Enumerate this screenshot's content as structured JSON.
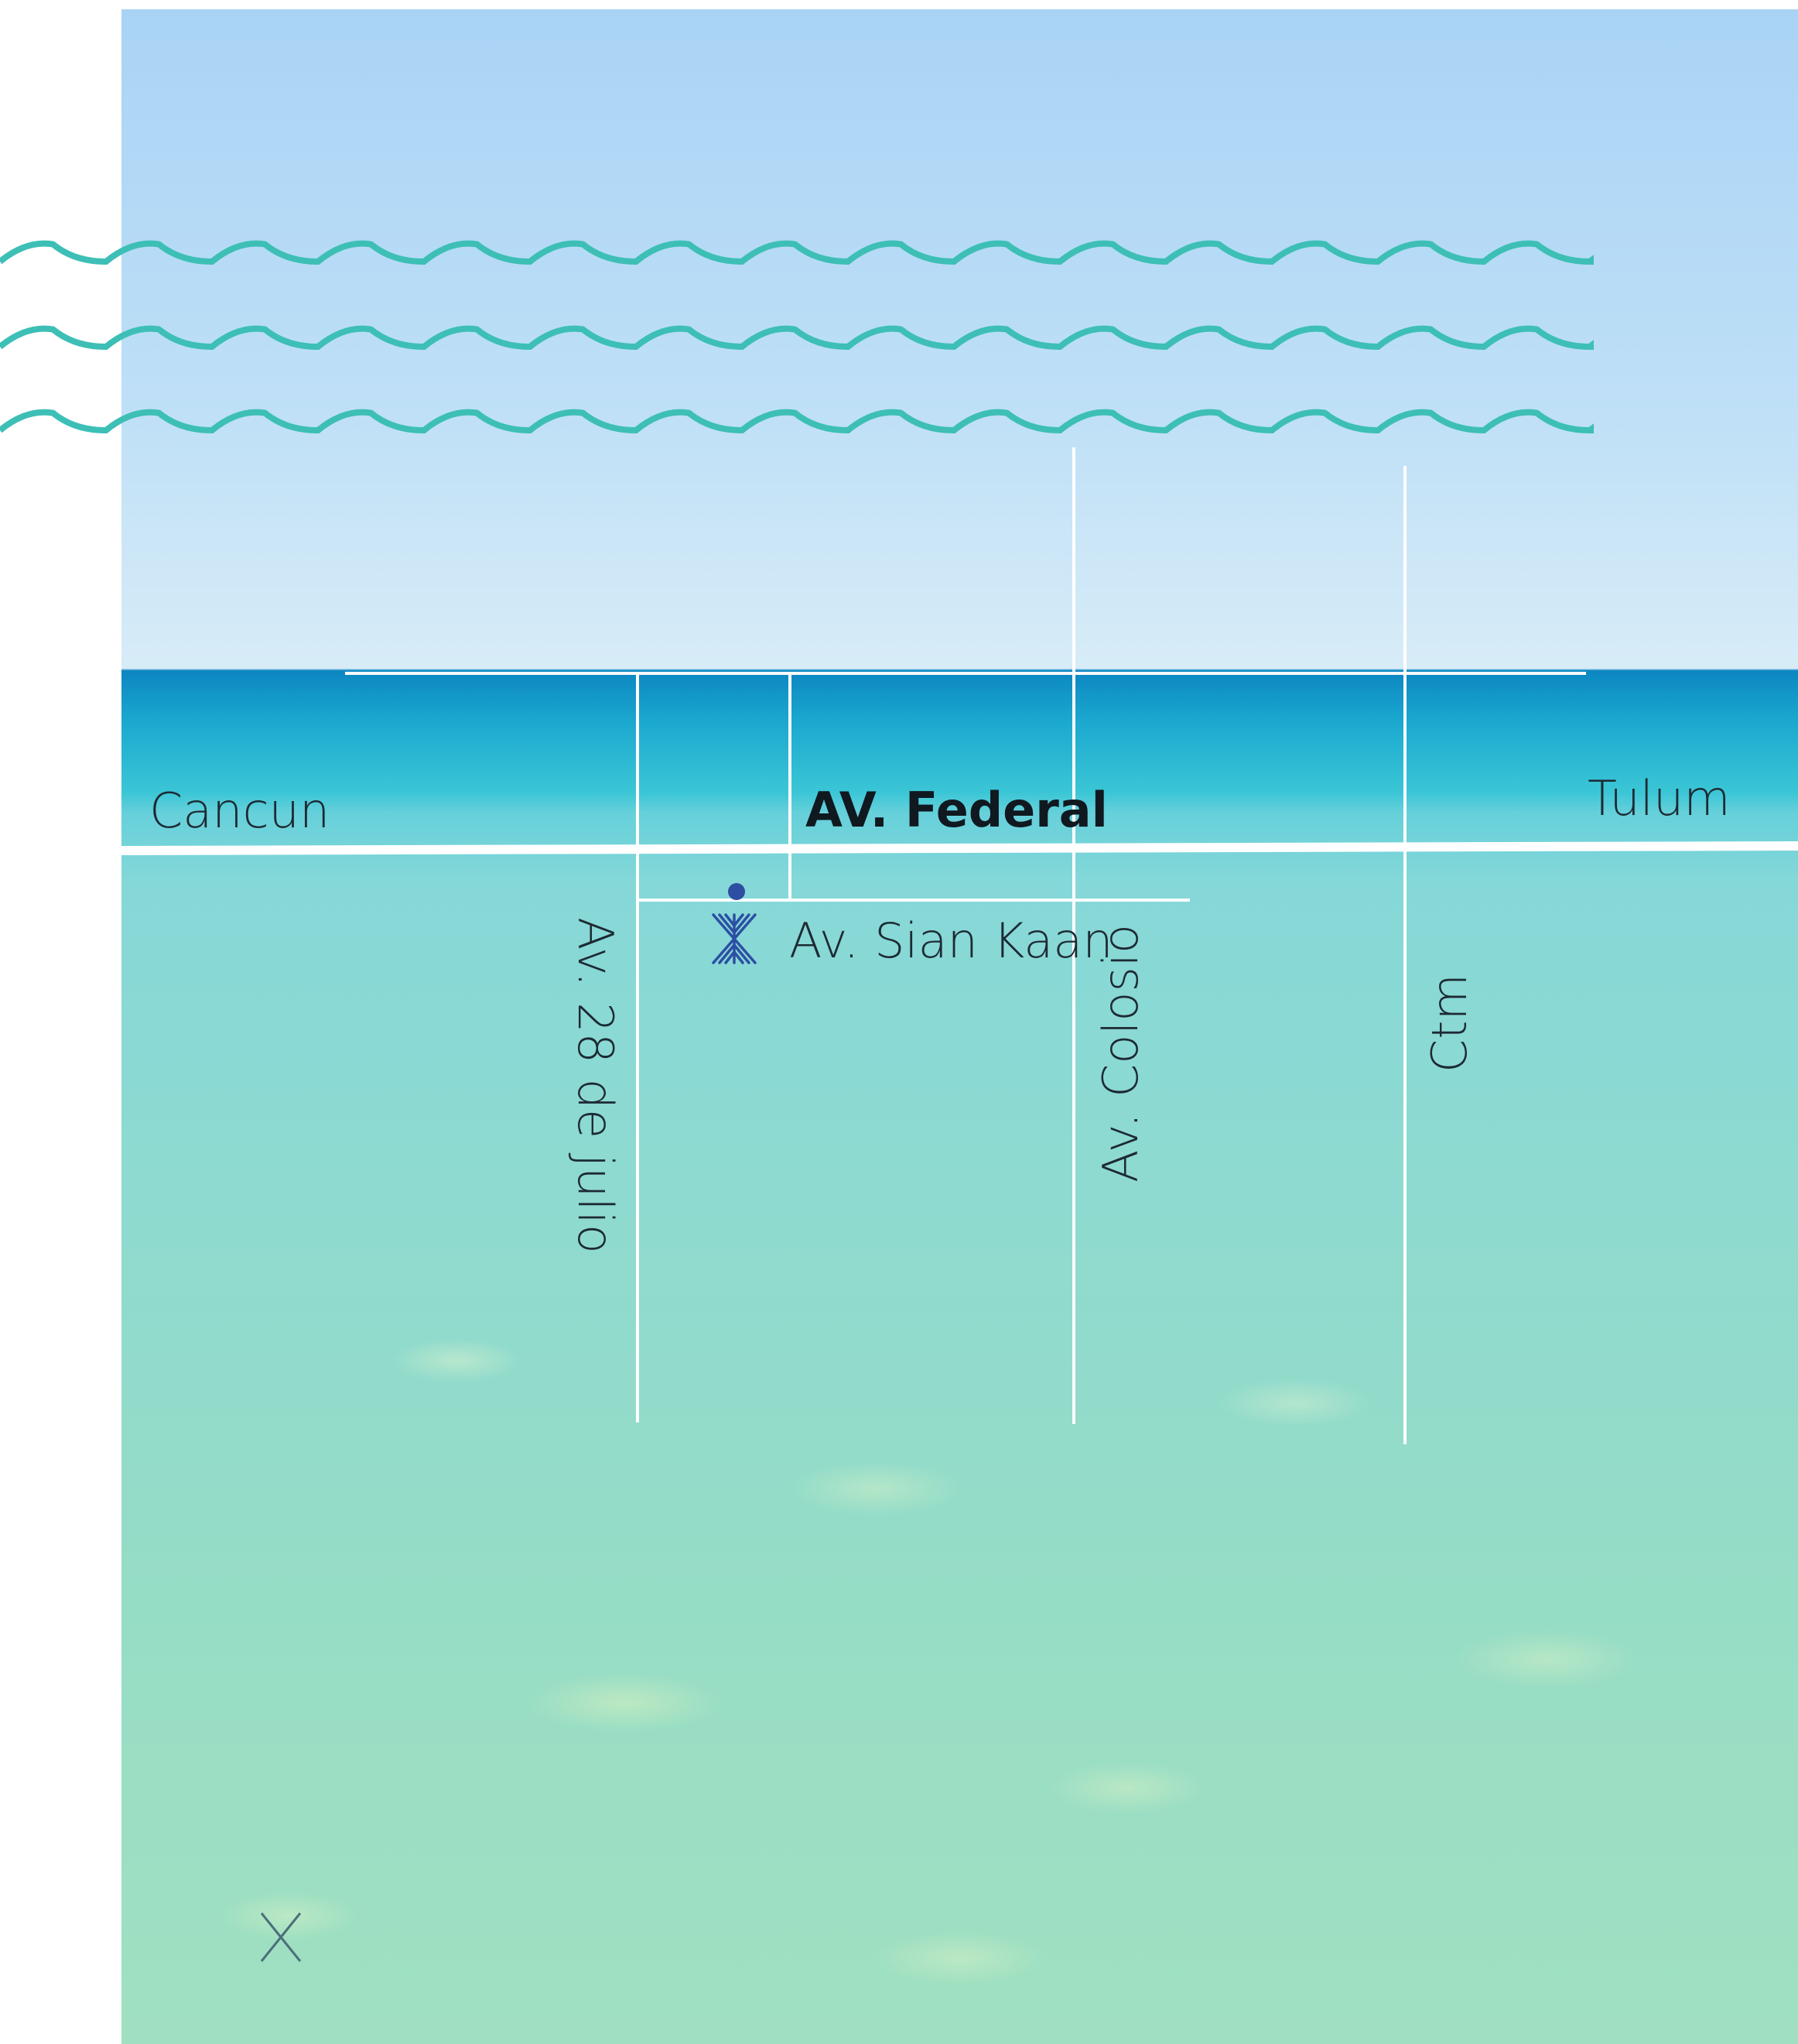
{
  "map": {
    "labels": {
      "cancun": "Cancun",
      "tulum": "Tulum",
      "federal": "AV. Federal",
      "sian_kaan": "Av. Sian Kaan",
      "julio": "Av. 28 de julio",
      "colosio": "Av. Colosio",
      "ctm": "Ctm"
    },
    "colors": {
      "roads": "#ffffff",
      "waves": "#3dbfb6",
      "marker": "#2d4fa3",
      "label_text": "#1d2a33"
    },
    "icons": {
      "location": "location-dot-icon",
      "brand": "brand-logo-icon",
      "close": "x-mark-icon"
    }
  }
}
